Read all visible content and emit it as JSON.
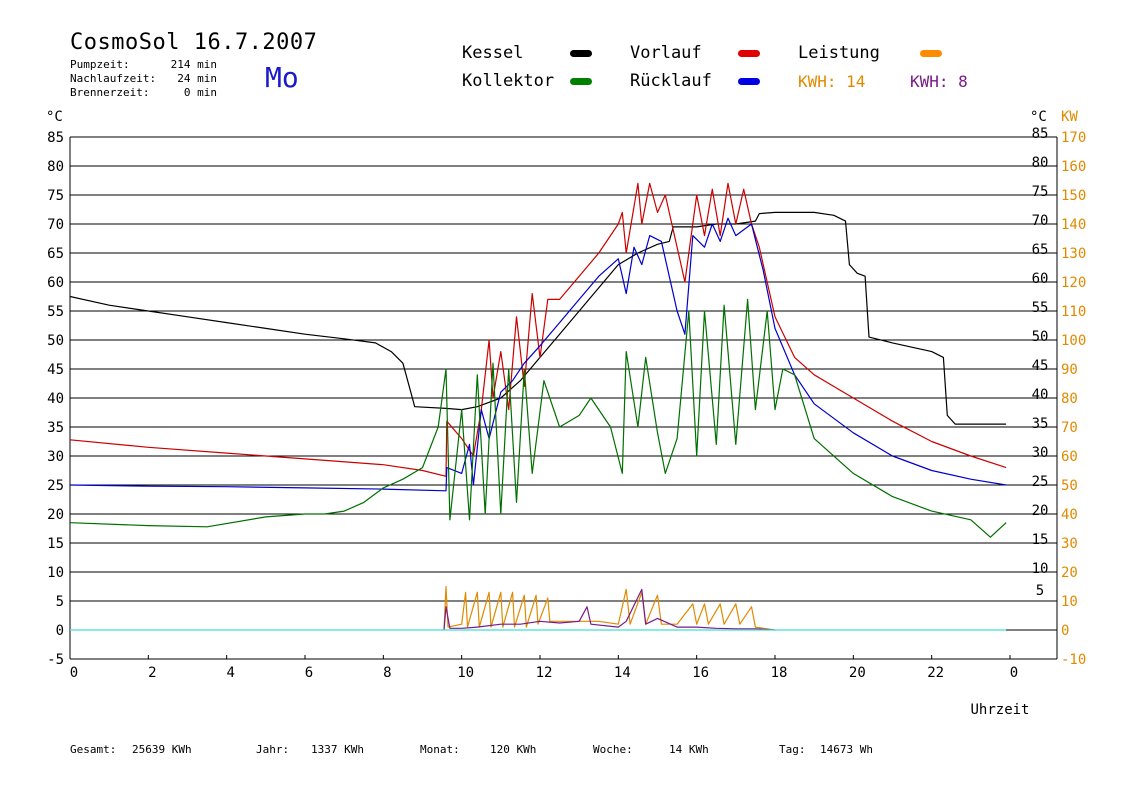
{
  "header": {
    "title": "CosmoSol 16.7.2007",
    "day": "Mo",
    "stats": [
      {
        "label": "Pumpzeit:",
        "value": "214 min"
      },
      {
        "label": "Nachlaufzeit:",
        "value": "24 min"
      },
      {
        "label": "Brennerzeit:",
        "value": "0 min"
      }
    ]
  },
  "legend": {
    "items": [
      {
        "label": "Kessel",
        "color": "#000000"
      },
      {
        "label": "Vorlauf",
        "color": "#e00000"
      },
      {
        "label": "Leistung",
        "color": "#ff8c00"
      },
      {
        "label": "Kollektor",
        "color": "#008000"
      },
      {
        "label": "Rücklauf",
        "color": "#0000e0"
      }
    ],
    "kwh_a": "KWH: 14",
    "kwh_b": "KWH: 8",
    "kwh_a_color": "#e08a00",
    "kwh_b_color": "#7a1a8a"
  },
  "axes": {
    "left_unit": "°C",
    "right_unit": "°C",
    "right_unit2": "KW",
    "xlabel": "Uhrzeit"
  },
  "footer": {
    "gesamt_label": "Gesamt:",
    "gesamt_value": "25639 KWh",
    "jahr_label": "Jahr:",
    "jahr_value": "1337 KWh",
    "monat_label": "Monat:",
    "monat_value": "120 KWh",
    "woche_label": "Woche:",
    "woche_value": "14 KWh",
    "tag_label": "Tag:",
    "tag_value": "14673 Wh"
  },
  "chart_data": {
    "type": "line",
    "title": "CosmoSol 16.7.2007",
    "xlabel": "Uhrzeit",
    "ylabel": "°C",
    "y2label": "KW",
    "xlim": [
      0,
      24
    ],
    "ylim": [
      -5,
      85
    ],
    "y2lim": [
      -10,
      170
    ],
    "grid": true,
    "x_ticks": [
      "0",
      "2",
      "4",
      "6",
      "8",
      "10",
      "12",
      "14",
      "16",
      "18",
      "20",
      "22",
      "0"
    ],
    "left_ticks": [
      "-5",
      "0",
      "5",
      "10",
      "15",
      "20",
      "25",
      "30",
      "35",
      "40",
      "45",
      "50",
      "55",
      "60",
      "65",
      "70",
      "75",
      "80",
      "85"
    ],
    "right_ticks": [
      "5",
      "10",
      "15",
      "20",
      "25",
      "30",
      "35",
      "40",
      "45",
      "50",
      "55",
      "60",
      "65",
      "70",
      "75",
      "80",
      "85"
    ],
    "kw_ticks": [
      "-10",
      "0",
      "10",
      "20",
      "30",
      "40",
      "50",
      "60",
      "70",
      "80",
      "90",
      "100",
      "110",
      "120",
      "130",
      "140",
      "150",
      "160",
      "170"
    ],
    "series": [
      {
        "name": "Kessel",
        "color": "#000000",
        "points": [
          [
            0,
            57.5
          ],
          [
            1,
            56
          ],
          [
            2,
            55
          ],
          [
            3,
            54
          ],
          [
            4,
            53
          ],
          [
            5,
            52
          ],
          [
            6,
            51
          ],
          [
            7,
            50.2
          ],
          [
            7.8,
            49.5
          ],
          [
            8.2,
            48
          ],
          [
            8.5,
            46
          ],
          [
            8.7,
            41
          ],
          [
            8.8,
            38.5
          ],
          [
            9.6,
            38.2
          ],
          [
            10,
            38
          ],
          [
            10.4,
            38.5
          ],
          [
            11,
            40
          ],
          [
            11.5,
            43
          ],
          [
            12,
            47
          ],
          [
            12.5,
            51
          ],
          [
            13,
            55
          ],
          [
            13.5,
            59
          ],
          [
            14,
            63
          ],
          [
            14.5,
            65
          ],
          [
            15,
            66.5
          ],
          [
            15.3,
            67
          ],
          [
            15.4,
            69.5
          ],
          [
            16,
            69.5
          ],
          [
            16.5,
            70
          ],
          [
            17,
            70
          ],
          [
            17.5,
            70.5
          ],
          [
            17.6,
            71.8
          ],
          [
            18,
            72
          ],
          [
            19,
            72
          ],
          [
            19.5,
            71.5
          ],
          [
            19.8,
            70.5
          ],
          [
            19.9,
            63
          ],
          [
            20.1,
            61.5
          ],
          [
            20.3,
            61
          ],
          [
            20.4,
            50.5
          ],
          [
            21,
            49.5
          ],
          [
            22,
            48
          ],
          [
            22.3,
            47
          ],
          [
            22.4,
            37
          ],
          [
            22.6,
            35.5
          ],
          [
            23.9,
            35.5
          ]
        ]
      },
      {
        "name": "Vorlauf",
        "color": "#cc0000",
        "points": [
          [
            0,
            32.8
          ],
          [
            2,
            31.5
          ],
          [
            4,
            30.5
          ],
          [
            6,
            29.5
          ],
          [
            8,
            28.5
          ],
          [
            9,
            27.5
          ],
          [
            9.6,
            26.5
          ],
          [
            9.62,
            36
          ],
          [
            10,
            33
          ],
          [
            10.3,
            30
          ],
          [
            10.5,
            38
          ],
          [
            10.7,
            50
          ],
          [
            10.8,
            40
          ],
          [
            11,
            48
          ],
          [
            11.2,
            38
          ],
          [
            11.4,
            54
          ],
          [
            11.6,
            42
          ],
          [
            11.8,
            58
          ],
          [
            12,
            47
          ],
          [
            12.2,
            57
          ],
          [
            12.5,
            57
          ],
          [
            13,
            61
          ],
          [
            13.5,
            65
          ],
          [
            14,
            70
          ],
          [
            14.1,
            72
          ],
          [
            14.2,
            65
          ],
          [
            14.5,
            77
          ],
          [
            14.6,
            70
          ],
          [
            14.8,
            77
          ],
          [
            15,
            72
          ],
          [
            15.2,
            75
          ],
          [
            15.5,
            66
          ],
          [
            15.7,
            60
          ],
          [
            16,
            75
          ],
          [
            16.2,
            68
          ],
          [
            16.4,
            76
          ],
          [
            16.6,
            68
          ],
          [
            16.8,
            77
          ],
          [
            17,
            70
          ],
          [
            17.2,
            76
          ],
          [
            17.4,
            70
          ],
          [
            17.6,
            66
          ],
          [
            18,
            54
          ],
          [
            18.5,
            47
          ],
          [
            19,
            44
          ],
          [
            20,
            40
          ],
          [
            21,
            36
          ],
          [
            22,
            32.5
          ],
          [
            23,
            30
          ],
          [
            23.9,
            28
          ]
        ]
      },
      {
        "name": "Rücklauf",
        "color": "#0000cc",
        "points": [
          [
            0,
            25
          ],
          [
            2,
            24.8
          ],
          [
            4,
            24.7
          ],
          [
            6,
            24.5
          ],
          [
            8,
            24.3
          ],
          [
            9.6,
            24
          ],
          [
            9.62,
            28
          ],
          [
            10,
            27
          ],
          [
            10.2,
            32
          ],
          [
            10.3,
            25
          ],
          [
            10.5,
            38
          ],
          [
            10.7,
            33
          ],
          [
            11,
            41
          ],
          [
            11.3,
            43
          ],
          [
            11.6,
            46
          ],
          [
            12,
            49
          ],
          [
            12.5,
            53
          ],
          [
            13,
            57
          ],
          [
            13.5,
            61
          ],
          [
            14,
            64
          ],
          [
            14.1,
            61
          ],
          [
            14.2,
            58
          ],
          [
            14.4,
            66
          ],
          [
            14.6,
            63
          ],
          [
            14.8,
            68
          ],
          [
            15.1,
            67
          ],
          [
            15.5,
            55
          ],
          [
            15.7,
            51
          ],
          [
            15.9,
            68
          ],
          [
            16.2,
            66
          ],
          [
            16.4,
            70
          ],
          [
            16.6,
            67
          ],
          [
            16.8,
            71
          ],
          [
            17,
            68
          ],
          [
            17.4,
            70
          ],
          [
            17.7,
            62
          ],
          [
            18,
            52
          ],
          [
            18.5,
            44
          ],
          [
            19,
            39
          ],
          [
            20,
            34
          ],
          [
            21,
            30
          ],
          [
            22,
            27.5
          ],
          [
            23,
            26
          ],
          [
            23.9,
            25
          ]
        ]
      },
      {
        "name": "Kollektor",
        "color": "#007000",
        "points": [
          [
            0,
            18.5
          ],
          [
            2,
            18
          ],
          [
            3.5,
            17.8
          ],
          [
            5,
            19.5
          ],
          [
            6,
            20
          ],
          [
            6.5,
            20
          ],
          [
            7,
            20.5
          ],
          [
            7.5,
            22
          ],
          [
            8,
            24.5
          ],
          [
            8.5,
            26
          ],
          [
            9,
            28
          ],
          [
            9.4,
            35
          ],
          [
            9.6,
            45
          ],
          [
            9.7,
            19
          ],
          [
            10,
            38
          ],
          [
            10.2,
            19
          ],
          [
            10.4,
            44
          ],
          [
            10.6,
            20
          ],
          [
            10.8,
            46
          ],
          [
            11,
            20
          ],
          [
            11.2,
            45
          ],
          [
            11.4,
            22
          ],
          [
            11.6,
            45
          ],
          [
            11.8,
            27
          ],
          [
            12.1,
            43
          ],
          [
            12.5,
            35
          ],
          [
            13,
            37
          ],
          [
            13.3,
            40
          ],
          [
            13.8,
            35
          ],
          [
            14.1,
            27
          ],
          [
            14.2,
            48
          ],
          [
            14.5,
            35
          ],
          [
            14.7,
            47
          ],
          [
            15,
            34
          ],
          [
            15.2,
            27
          ],
          [
            15.5,
            33
          ],
          [
            15.8,
            55
          ],
          [
            16,
            30
          ],
          [
            16.2,
            55
          ],
          [
            16.5,
            32
          ],
          [
            16.7,
            56
          ],
          [
            17,
            32
          ],
          [
            17.3,
            57
          ],
          [
            17.5,
            38
          ],
          [
            17.8,
            55
          ],
          [
            18,
            38
          ],
          [
            18.2,
            45
          ],
          [
            18.5,
            44
          ],
          [
            19,
            33
          ],
          [
            20,
            27
          ],
          [
            21,
            23
          ],
          [
            22,
            20.5
          ],
          [
            23,
            19
          ],
          [
            23.5,
            16
          ],
          [
            23.9,
            18.5
          ]
        ]
      },
      {
        "name": "Leistung",
        "color": "#e08a00",
        "points": [
          [
            9.55,
            0
          ],
          [
            9.6,
            7.5
          ],
          [
            9.65,
            0.5
          ],
          [
            10,
            1
          ],
          [
            10.1,
            6.5
          ],
          [
            10.15,
            0.5
          ],
          [
            10.4,
            6.5
          ],
          [
            10.45,
            0.5
          ],
          [
            10.7,
            6.5
          ],
          [
            10.75,
            0.5
          ],
          [
            11,
            6.5
          ],
          [
            11.05,
            0.5
          ],
          [
            11.3,
            6.5
          ],
          [
            11.35,
            0.5
          ],
          [
            11.6,
            6
          ],
          [
            11.65,
            0.5
          ],
          [
            11.9,
            6
          ],
          [
            11.95,
            1
          ],
          [
            12.2,
            5.5
          ],
          [
            12.25,
            1.5
          ],
          [
            13,
            1.5
          ],
          [
            13.5,
            1.5
          ],
          [
            14,
            1
          ],
          [
            14.2,
            7
          ],
          [
            14.3,
            1
          ],
          [
            14.6,
            6.5
          ],
          [
            14.7,
            1
          ],
          [
            15,
            6
          ],
          [
            15.1,
            1
          ],
          [
            15.5,
            1
          ],
          [
            15.9,
            4.5
          ],
          [
            16,
            1
          ],
          [
            16.2,
            4.5
          ],
          [
            16.3,
            1
          ],
          [
            16.6,
            4.5
          ],
          [
            16.7,
            1
          ],
          [
            17,
            4.5
          ],
          [
            17.1,
            1
          ],
          [
            17.4,
            4
          ],
          [
            17.5,
            0.5
          ],
          [
            18,
            0
          ]
        ]
      },
      {
        "name": "",
        "color": "#7a1a8a",
        "points": [
          [
            9.55,
            0
          ],
          [
            9.6,
            4
          ],
          [
            9.7,
            0.3
          ],
          [
            10,
            0.3
          ],
          [
            10.4,
            0.5
          ],
          [
            11,
            1
          ],
          [
            11.5,
            1
          ],
          [
            12,
            1.5
          ],
          [
            12.5,
            1.2
          ],
          [
            13,
            1.5
          ],
          [
            13.2,
            4
          ],
          [
            13.3,
            1
          ],
          [
            14,
            0.5
          ],
          [
            14.2,
            1.5
          ],
          [
            14.6,
            7
          ],
          [
            14.7,
            1
          ],
          [
            15,
            2
          ],
          [
            15.5,
            0.5
          ],
          [
            16,
            0.5
          ],
          [
            16.5,
            0.3
          ],
          [
            17,
            0.2
          ],
          [
            17.5,
            0.2
          ],
          [
            18,
            0
          ]
        ]
      },
      {
        "name": "",
        "color": "#40e0d0",
        "points": [
          [
            0,
            0
          ],
          [
            23.9,
            0
          ]
        ]
      }
    ]
  }
}
